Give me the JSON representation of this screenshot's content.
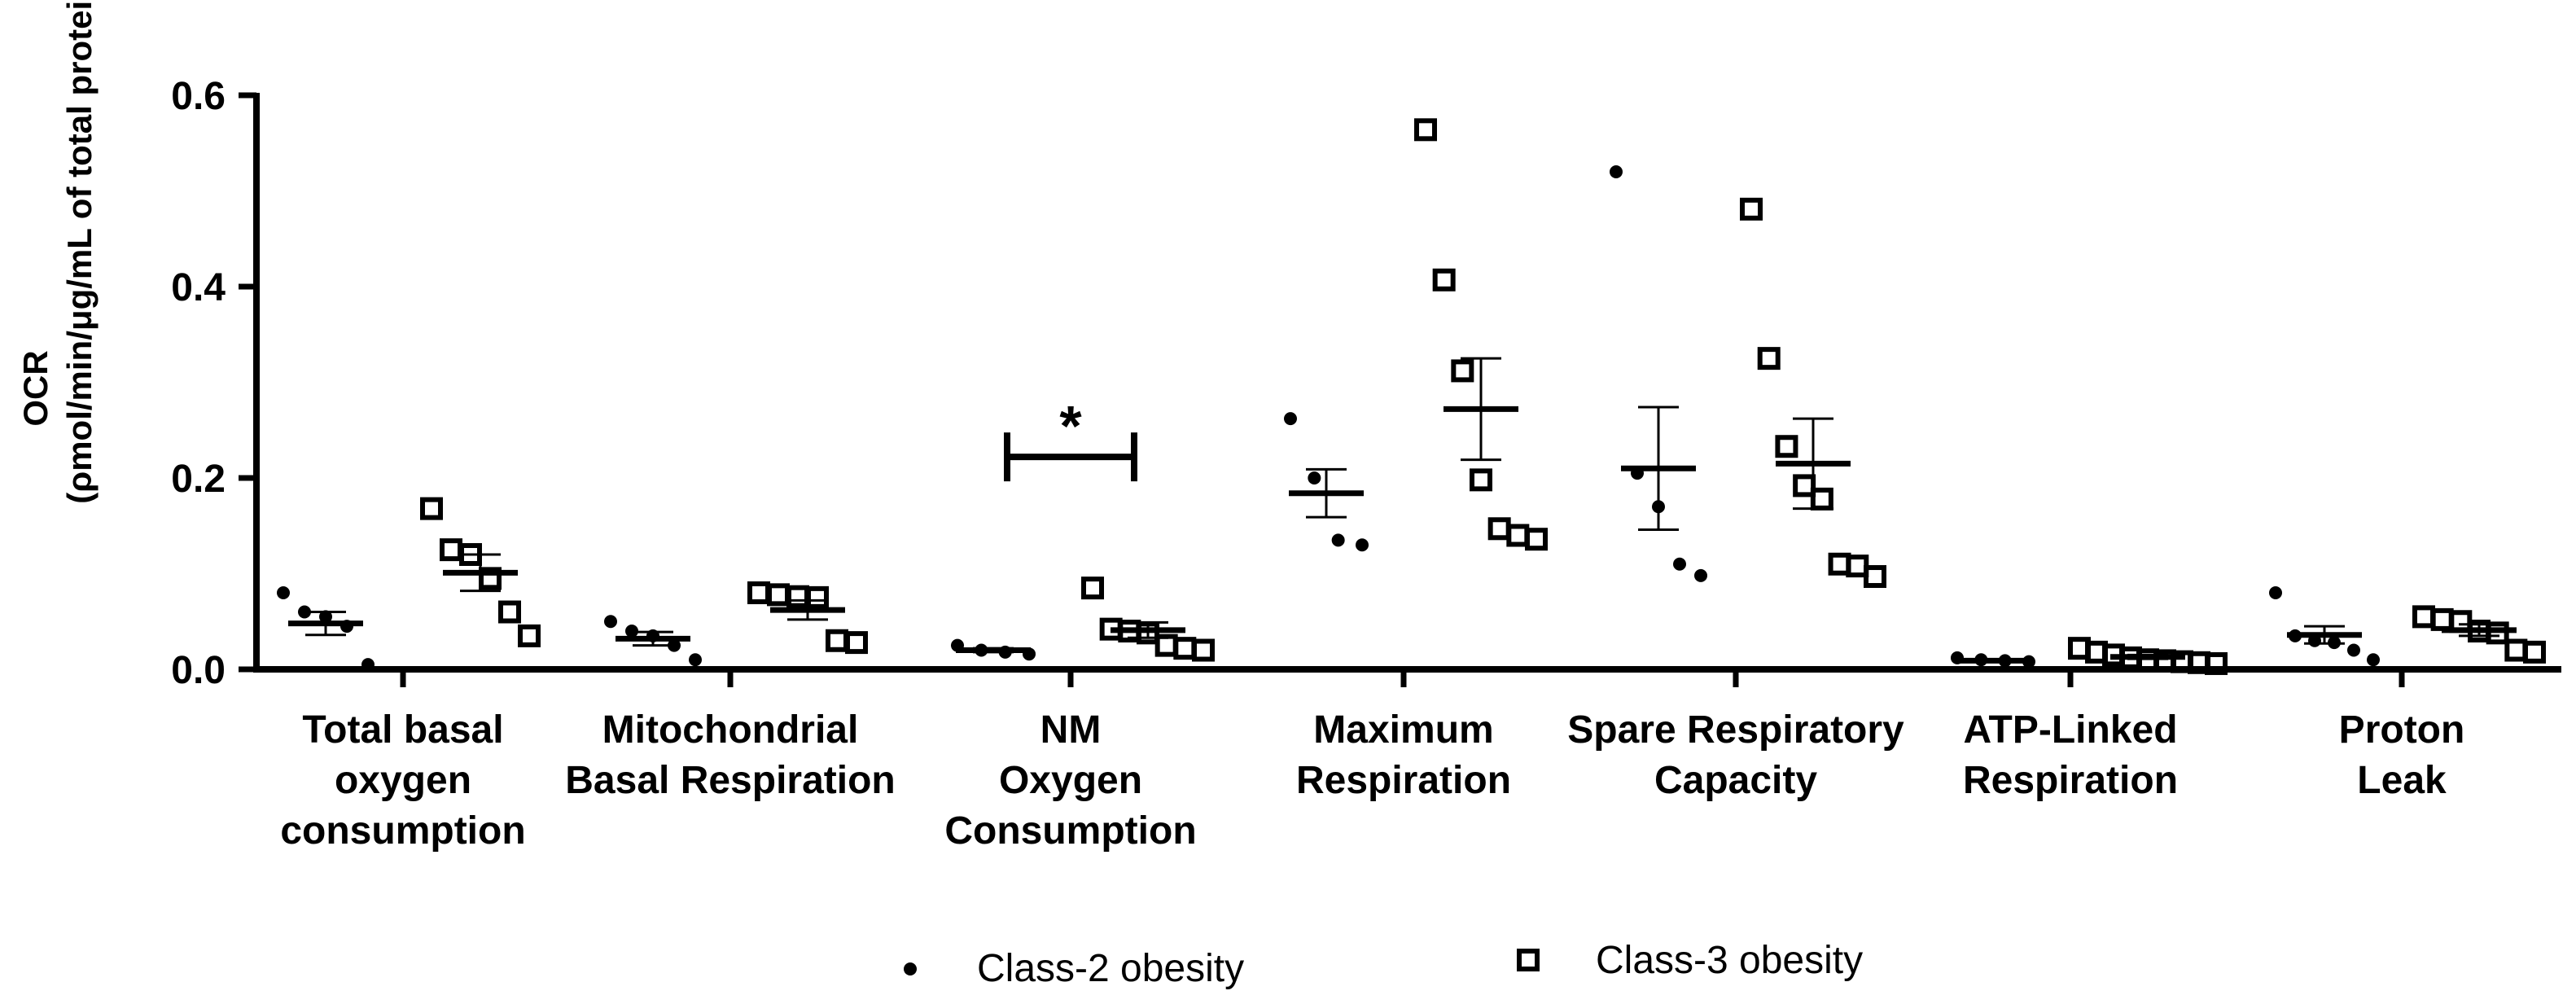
{
  "chart_data": {
    "type": "scatter",
    "title": "",
    "xlabel": "",
    "ylabel": "OCR",
    "ylabel_units": "(ρmol/min/μg/mL of total protein)",
    "ylim": [
      0,
      0.6
    ],
    "yticks": [
      "0.0",
      "0.2",
      "0.4",
      "0.6"
    ],
    "ytick_values": [
      0,
      0.2,
      0.4,
      0.6
    ],
    "categories": [
      [
        "Total basal",
        "oxygen",
        "consumption"
      ],
      [
        "Mitochondrial",
        "Basal Respiration"
      ],
      [
        "NM",
        "Oxygen",
        "Consumption"
      ],
      [
        "Maximum",
        "Respiration"
      ],
      [
        "Spare Respiratory",
        "Capacity"
      ],
      [
        "ATP-Linked",
        "Respiration"
      ],
      [
        "Proton",
        "Leak"
      ]
    ],
    "series": [
      {
        "name": "Class-2 obesity",
        "marker": "filled-circle",
        "points": [
          [
            0.08,
            0.06,
            0.055,
            0.045,
            0.005
          ],
          [
            0.05,
            0.04,
            0.035,
            0.025,
            0.01
          ],
          [
            0.025,
            0.02,
            0.018,
            0.016
          ],
          [
            0.262,
            0.2,
            0.135,
            0.13
          ],
          [
            0.52,
            0.205,
            0.17,
            0.11,
            0.098
          ],
          [
            0.012,
            0.01,
            0.009,
            0.008
          ],
          [
            0.08,
            0.035,
            0.03,
            0.028,
            0.02,
            0.01
          ]
        ],
        "mean": [
          0.048,
          0.032,
          0.02,
          0.184,
          0.21,
          0.009,
          0.036
        ],
        "sem": [
          0.012,
          0.007,
          0.002,
          0.025,
          0.064,
          0.001,
          0.009
        ]
      },
      {
        "name": "Class-3 obesity",
        "marker": "open-square",
        "points": [
          [
            0.168,
            0.125,
            0.12,
            0.095,
            0.06,
            0.035
          ],
          [
            0.08,
            0.078,
            0.076,
            0.075,
            0.03,
            0.028
          ],
          [
            0.085,
            0.042,
            0.04,
            0.038,
            0.025,
            0.022,
            0.02
          ],
          [
            0.564,
            0.407,
            0.312,
            0.198,
            0.147,
            0.14,
            0.136
          ],
          [
            0.481,
            0.325,
            0.233,
            0.192,
            0.178,
            0.11,
            0.108,
            0.097
          ],
          [
            0.022,
            0.018,
            0.015,
            0.012,
            0.01,
            0.009,
            0.008,
            0.007,
            0.006
          ],
          [
            0.055,
            0.052,
            0.05,
            0.04,
            0.038,
            0.02,
            0.018
          ]
        ],
        "mean": [
          0.101,
          0.062,
          0.041,
          0.272,
          0.215,
          0.013,
          0.041
        ],
        "sem": [
          0.019,
          0.01,
          0.008,
          0.053,
          0.047,
          0.002,
          0.006
        ]
      }
    ],
    "annotations": [
      {
        "text": "*",
        "between": [
          "Class-2 obesity",
          "Class-3 obesity"
        ],
        "category_index": 2,
        "bracket_y": 0.222
      }
    ],
    "legend": {
      "position": "bottom-center",
      "labels": [
        "Class-2 obesity",
        "Class-3 obesity"
      ]
    }
  }
}
